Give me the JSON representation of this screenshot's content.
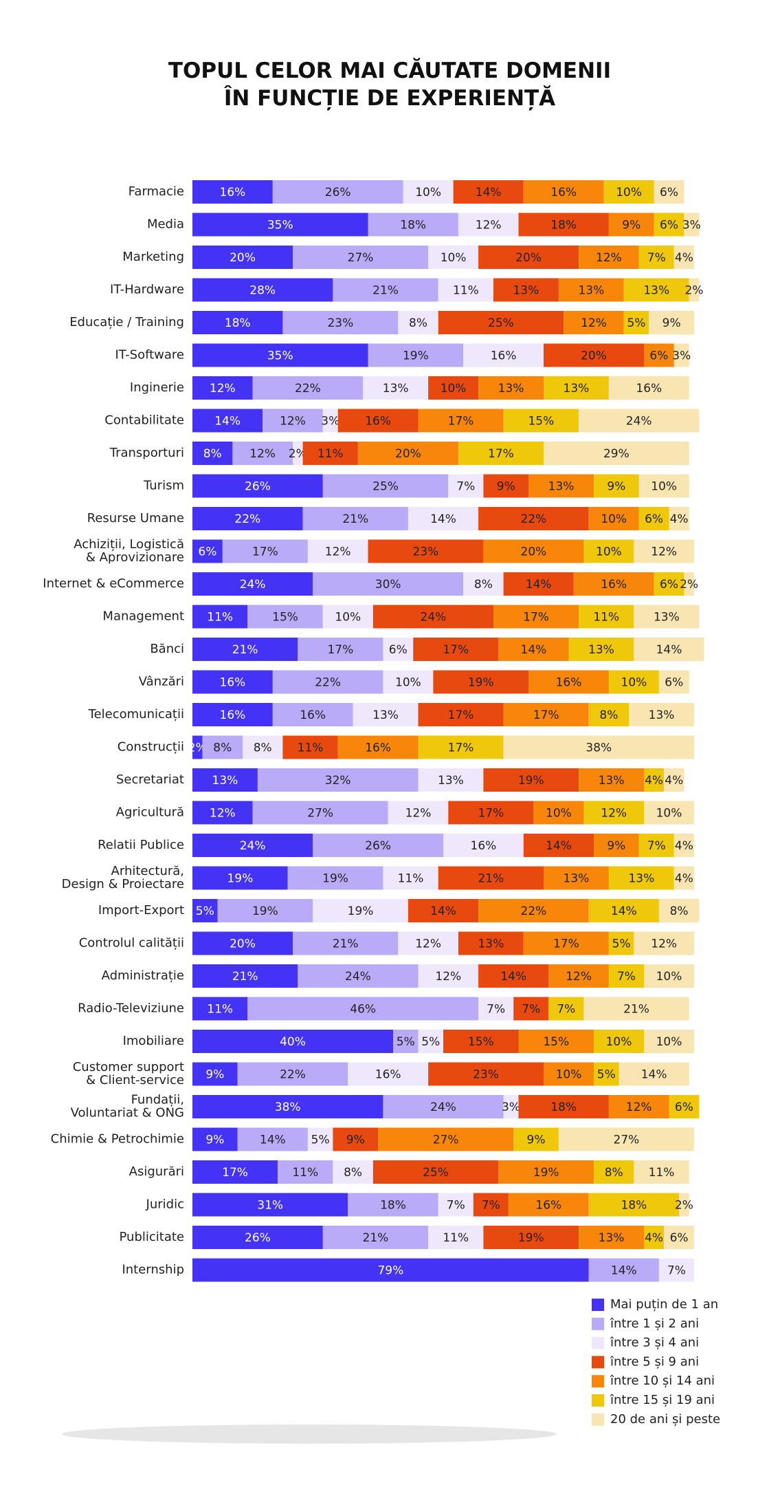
{
  "chart_data": {
    "type": "stacked-bar-horizontal",
    "title": "TOPUL CELOR MAI CĂUTATE DOMENII\nÎN FUNCȚIE DE EXPERIENȚĂ",
    "categories": [
      "Farmacie",
      "Media",
      "Marketing",
      "IT-Hardware",
      "Educație / Training",
      "IT-Software",
      "Inginerie",
      "Contabilitate",
      "Transporturi",
      "Turism",
      "Resurse Umane",
      "Achiziții, Logistică\n& Aprovizionare",
      "Internet & eCommerce",
      "Management",
      "Bănci",
      "Vânzări",
      "Telecomunicații",
      "Construcții",
      "Secretariat",
      "Agricultură",
      "Relatii Publice",
      "Arhitectură,\nDesign & Proiectare",
      "Import-Export",
      "Controlul calității",
      "Administrație",
      "Radio-Televiziune",
      "Imobiliare",
      "Customer support\n& Client-service",
      "Fundații,\nVoluntariat & ONG",
      "Chimie & Petrochimie",
      "Asigurări",
      "Juridic",
      "Publicitate",
      "Internship"
    ],
    "series": [
      {
        "name": "Mai puțin de 1 an",
        "color": "#4433f5",
        "values": [
          16,
          35,
          20,
          28,
          18,
          35,
          12,
          14,
          8,
          26,
          22,
          6,
          24,
          11,
          21,
          16,
          16,
          2,
          13,
          12,
          24,
          19,
          5,
          20,
          21,
          11,
          40,
          9,
          38,
          9,
          17,
          31,
          26,
          79
        ],
        "value_labels": [
          "16%",
          "35%",
          "20%",
          "28%",
          "18%",
          "35%",
          "12%",
          "14%",
          "8%",
          "26%",
          "22%",
          "6%",
          "24%",
          "11%",
          "21%",
          "16%",
          "16%",
          "2%",
          "13%",
          "12%",
          "24%",
          "19%",
          "5%",
          "20%",
          "21%",
          "11%",
          "40%",
          "9%",
          "38%",
          "9%",
          "17%",
          "31%",
          "26%",
          "79%"
        ]
      },
      {
        "name": "între 1 și 2 ani",
        "color": "#b9abf8",
        "values": [
          26,
          18,
          27,
          21,
          23,
          19,
          22,
          12,
          12,
          25,
          21,
          17,
          30,
          15,
          17,
          22,
          16,
          8,
          32,
          27,
          26,
          19,
          19,
          21,
          24,
          46,
          5,
          22,
          24,
          14,
          11,
          18,
          21,
          14
        ],
        "value_labels": [
          "26%",
          "18%",
          "27%",
          "21%",
          "23%",
          "19%",
          "22%",
          "12%",
          "12%",
          "25%",
          "21%",
          "17%",
          "30%",
          "15%",
          "17%",
          "22%",
          "16%",
          "8%",
          "32%",
          "27%",
          "26%",
          "19%",
          "19%",
          "21%",
          "24%",
          "46%",
          "5%",
          "22%",
          "24%",
          "14%",
          "11%",
          "18%",
          "21%",
          "14%"
        ]
      },
      {
        "name": "între 3 și 4 ani",
        "color": "#efe8fc",
        "values": [
          10,
          12,
          10,
          11,
          8,
          16,
          13,
          3,
          2,
          7,
          14,
          12,
          8,
          10,
          6,
          10,
          13,
          8,
          13,
          12,
          16,
          11,
          19,
          12,
          12,
          7,
          5,
          16,
          3,
          5,
          8,
          7,
          11,
          7
        ],
        "value_labels": [
          "10%",
          "12%",
          "10%",
          "11%",
          "8%",
          "16%",
          "13%",
          "3%",
          "2%",
          "7%",
          "14%",
          "12%",
          "8%",
          "10%",
          "6%",
          "10%",
          "13%",
          "8%",
          "13%",
          "12%",
          "16%",
          "11%",
          "19%",
          "12%",
          "12%",
          "7%",
          "5%",
          "16%",
          "3%",
          "5%",
          "8%",
          "7%",
          "11%",
          "7%"
        ]
      },
      {
        "name": "între 5 și 9 ani",
        "color": "#e8490f",
        "values": [
          14,
          18,
          20,
          13,
          25,
          20,
          10,
          16,
          11,
          9,
          22,
          23,
          14,
          24,
          17,
          19,
          17,
          11,
          19,
          17,
          14,
          21,
          14,
          13,
          14,
          7,
          15,
          23,
          18,
          9,
          25,
          7,
          19,
          null
        ],
        "value_labels": [
          "14%",
          "18%",
          "20%",
          "13%",
          "25%",
          "20%",
          "10%",
          "16%",
          "11%",
          "9%",
          "22%",
          "23%",
          "14%",
          "24%",
          "17%",
          "19%",
          "17%",
          "11%",
          "19%",
          "17%",
          "14%",
          "21%",
          "14%",
          "13%",
          "14%",
          "7%",
          "15%",
          "23%",
          "18%",
          "9%",
          "25%",
          "7%",
          "19%",
          null
        ]
      },
      {
        "name": "între 10 și 14 ani",
        "color": "#f7860b",
        "values": [
          16,
          9,
          12,
          13,
          12,
          6,
          13,
          17,
          20,
          13,
          10,
          20,
          16,
          17,
          14,
          16,
          17,
          16,
          13,
          10,
          9,
          13,
          22,
          17,
          12,
          null,
          15,
          10,
          12,
          27,
          19,
          16,
          13,
          null
        ],
        "value_labels": [
          "16%",
          "9%",
          "12%",
          "13%",
          "12%",
          "6%",
          "13%",
          "17%",
          "20%",
          "13%",
          "10%",
          "20%",
          "16%",
          "17%",
          "14%",
          "16%",
          "17%",
          "16%",
          "13%",
          "10%",
          "9%",
          "13%",
          "22%",
          "17%",
          "12%",
          null,
          "15%",
          "10%",
          "12%",
          "27%",
          "19%",
          "16%",
          "13%",
          null
        ]
      },
      {
        "name": "între 15 și 19 ani",
        "color": "#efc80b",
        "values": [
          10,
          6,
          7,
          13,
          5,
          null,
          13,
          15,
          17,
          9,
          6,
          10,
          6,
          11,
          13,
          10,
          8,
          17,
          4,
          12,
          7,
          13,
          14,
          5,
          7,
          7,
          10,
          5,
          6,
          9,
          8,
          18,
          4,
          null
        ],
        "value_labels": [
          "10%",
          "6%",
          "7%",
          "13%",
          "5%",
          null,
          "13%",
          "15%",
          "17%",
          "9%",
          "6%",
          "10%",
          "6%",
          "11%",
          "13%",
          "10%",
          "8%",
          "17%",
          "4%",
          "12%",
          "7%",
          "13%",
          "14%",
          "5%",
          "7%",
          "7%",
          "10%",
          "5%",
          "6%",
          "9%",
          "8%",
          "18%",
          "4%",
          null
        ]
      },
      {
        "name": "20 de ani și peste",
        "color": "#f8e5b2",
        "values": [
          6,
          3,
          4,
          2,
          9,
          3,
          16,
          24,
          29,
          10,
          4,
          12,
          2,
          13,
          14,
          6,
          13,
          38,
          4,
          10,
          4,
          4,
          8,
          12,
          10,
          21,
          10,
          14,
          null,
          27,
          11,
          2,
          6,
          null
        ],
        "value_labels": [
          "6%",
          "3%",
          "4%",
          "2%",
          "9%",
          "3%",
          "16%",
          "24%",
          "29%",
          "10%",
          "4%",
          "12%",
          "2%",
          "13%",
          "14%",
          "6%",
          "13%",
          "38%",
          "4%",
          "10%",
          "4%",
          "4%",
          "8%",
          "12%",
          "10%",
          "21%",
          "10%",
          "14%",
          null,
          "27%",
          "11%",
          "2%",
          "6%",
          null
        ]
      }
    ]
  }
}
